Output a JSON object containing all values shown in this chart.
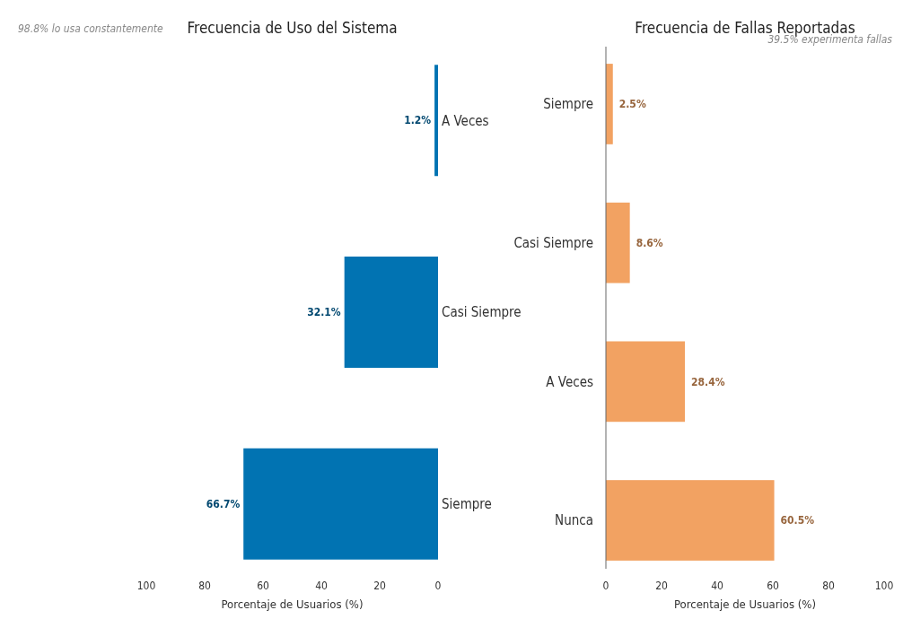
{
  "chart_data": [
    {
      "type": "bar",
      "orientation": "horizontal",
      "title": "Frecuencia de Uso del Sistema",
      "xlabel": "Porcentaje de Usuarios (%)",
      "categories": [
        "A Veces",
        "Casi Siempre",
        "Siempre"
      ],
      "values": [
        1.2,
        32.1,
        66.7
      ],
      "value_labels": [
        "1.2%",
        "32.1%",
        "66.7%"
      ],
      "color": "#0173b2",
      "xlim": [
        100,
        0
      ],
      "xticks": [
        100,
        80,
        60,
        40,
        20,
        0
      ],
      "grid": false,
      "annotations": [
        "98.8% lo usa constantemente"
      ]
    },
    {
      "type": "bar",
      "orientation": "horizontal",
      "title": "Frecuencia de Fallas Reportadas",
      "xlabel": "Porcentaje de Usuarios (%)",
      "categories": [
        "Siempre",
        "Casi Siempre",
        "A Veces",
        "Nunca"
      ],
      "values": [
        2.5,
        8.6,
        28.4,
        60.5
      ],
      "value_labels": [
        "2.5%",
        "8.6%",
        "28.4%",
        "60.5%"
      ],
      "color": "#f2a262",
      "xlim": [
        0,
        100
      ],
      "xticks": [
        0,
        20,
        40,
        60,
        80,
        100
      ],
      "grid": false,
      "annotations": [
        "39.5% experimenta fallas"
      ]
    }
  ]
}
